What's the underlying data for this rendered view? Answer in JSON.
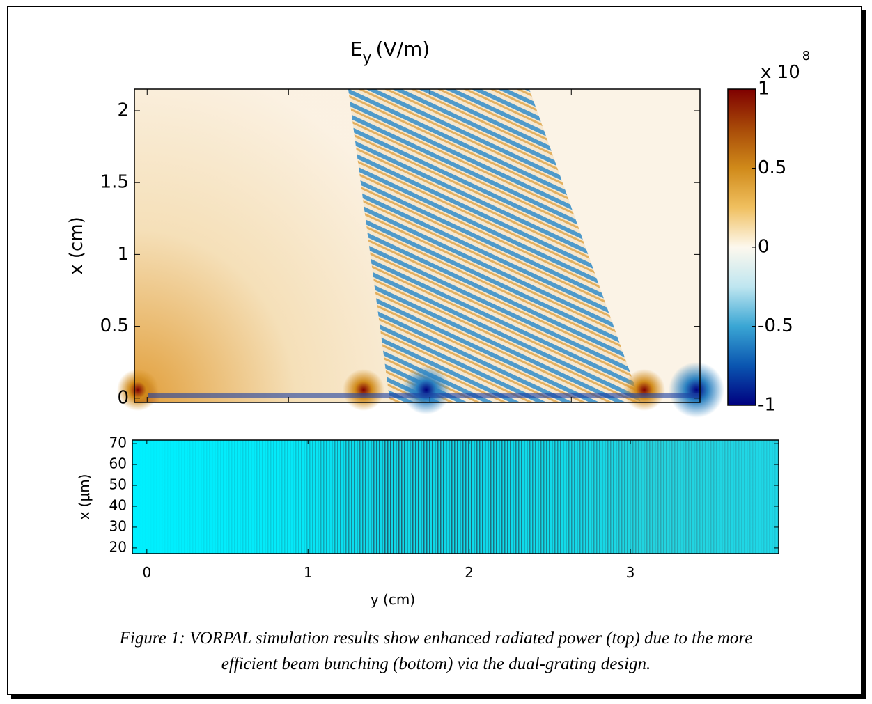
{
  "chart_data": [
    {
      "type": "heatmap",
      "title": "E",
      "title_subscript": "y",
      "title_unit": "(V/m)",
      "ylabel": "x (cm)",
      "xlim": [
        -0.09,
        3.91
      ],
      "ylim": [
        -0.03,
        2.15
      ],
      "xticks": [
        0,
        1,
        2,
        3
      ],
      "show_xtick_labels": false,
      "yticks": [
        0,
        0.5,
        1,
        1.5,
        2
      ],
      "colorbar": {
        "lim": [
          -1,
          1
        ],
        "ticks": [
          1,
          0.5,
          0,
          -0.5,
          -1
        ],
        "multiplier": "x 10",
        "exponent": "8",
        "colors": [
          "#00007f",
          "#0a55b0",
          "#3aa6d4",
          "#bfe6f0",
          "#fdf8ee",
          "#f0c060",
          "#d08a1a",
          "#a84a08",
          "#7f0000"
        ]
      }
    },
    {
      "type": "heatmap",
      "xlabel": "y (cm)",
      "ylabel": "x (μm)",
      "xlim": [
        -0.09,
        3.92
      ],
      "ylim": [
        17.3,
        71.7
      ],
      "xticks": [
        0,
        1,
        2,
        3
      ],
      "show_xtick_labels": true,
      "yticks": [
        20,
        30,
        40,
        50,
        60,
        70
      ]
    }
  ],
  "caption": [
    "Figure 1: VORPAL simulation results show enhanced radiated power (top) due to the more",
    "efficient beam bunching (bottom) via the dual-grating design."
  ]
}
